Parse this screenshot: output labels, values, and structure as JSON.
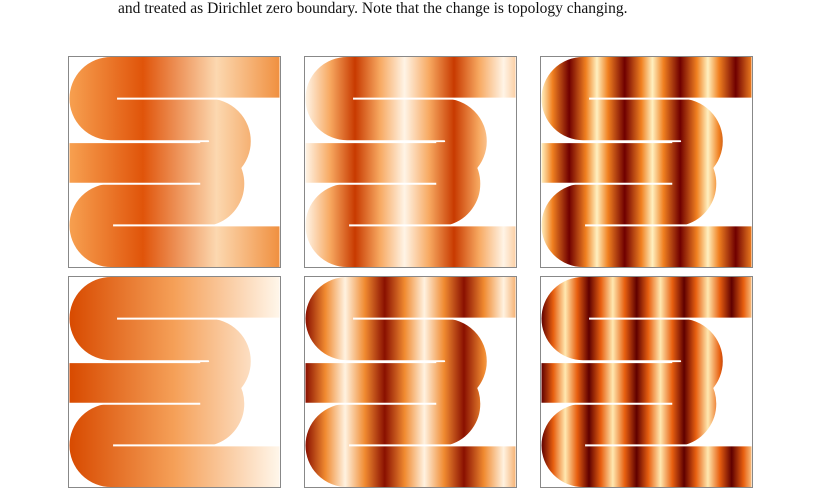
{
  "caption_line": "and treated as Dirichlet zero boundary. Note that the change is topology changing."
}
